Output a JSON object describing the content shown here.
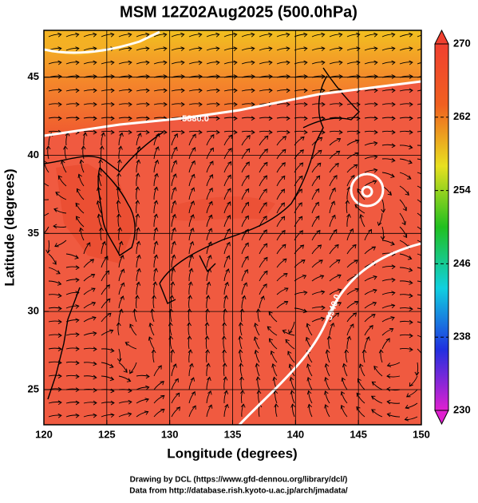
{
  "chart_data": {
    "type": "map",
    "title": "MSM 12Z02Aug2025 (500.0hPa)",
    "x_label": "Longitude (degrees)",
    "y_label": "Latitude  (degrees)",
    "xlim": [
      120,
      150
    ],
    "xticks": [
      120,
      125,
      130,
      135,
      140,
      145,
      150
    ],
    "ylim": [
      22.75,
      48
    ],
    "yticks": [
      25,
      30,
      35,
      40,
      45
    ],
    "grid": true,
    "contour_labels": [
      "5880.0",
      "5940.0"
    ],
    "colorbar": {
      "lim": [
        230,
        270
      ],
      "ticks": [
        230,
        238,
        246,
        254,
        262,
        270
      ],
      "colors": [
        "#e020d0",
        "#2030e0",
        "#10d0e0",
        "#20c020",
        "#e8e020",
        "#f06020",
        "#f04030"
      ]
    },
    "footer": [
      "Drawing by DCL (https://www.gfd-dennou.org/library/dcl/)",
      "Data from http://database.rish.kyoto-u.ac.jp/arch/jmadata/"
    ]
  }
}
